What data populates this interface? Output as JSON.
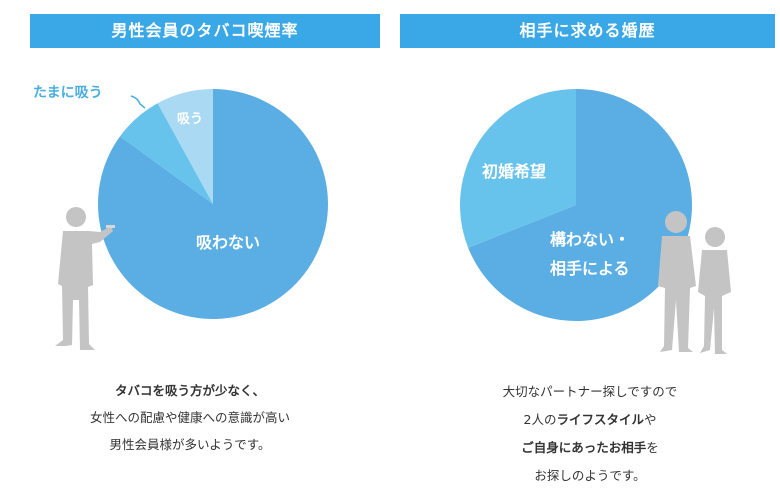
{
  "colors": {
    "header_bg": "#3aa8e6",
    "slice_main": "#5aaee4",
    "slice_secondary": "#67c3ec",
    "slice_light": "#a9d9f3",
    "silhouette": "#c4c4c4",
    "outside_label": "#4aaee0"
  },
  "left": {
    "header": "男性会員のタバコ喫煙率",
    "caption": {
      "line1": "タバコを吸う方が少なく、",
      "line2": "女性への配慮や健康への意識が高い",
      "line3": "男性会員様が多いようです。"
    }
  },
  "right": {
    "header": "相手に求める婚歴",
    "caption": {
      "line1": "大切なパートナー探しですので",
      "line2_pre": "2人の",
      "line2_bold": "ライフスタイル",
      "line2_post": "や",
      "line3_bold": "ご自身にあった",
      "line3_mid": "お相手",
      "line3_post": "を",
      "line4": "お探しのようです。"
    }
  },
  "chart_data": [
    {
      "type": "pie",
      "title": "男性会員のタバコ喫煙率",
      "categories": [
        "吸わない",
        "たまに吸う",
        "吸う"
      ],
      "values": [
        85,
        7,
        8
      ],
      "labels_inside": [
        "吸わない",
        "吸う"
      ],
      "label_outside": "たまに吸う"
    },
    {
      "type": "pie",
      "title": "相手に求める婚歴",
      "categories": [
        "構わない・相手による",
        "初婚希望"
      ],
      "values": [
        69,
        31
      ],
      "label_line1": "構わない・",
      "label_line2": "相手による",
      "label_other": "初婚希望"
    }
  ]
}
